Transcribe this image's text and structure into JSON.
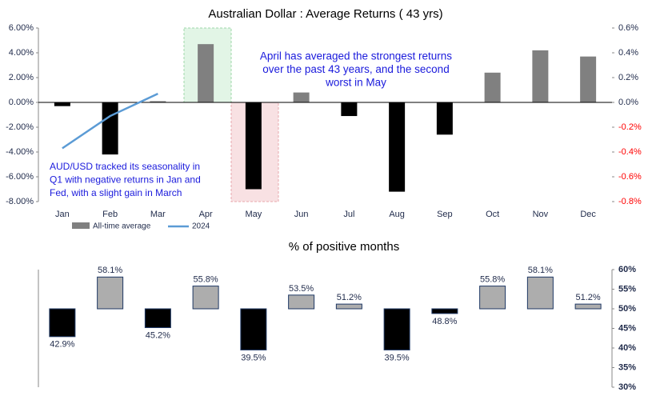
{
  "chart_data": [
    {
      "type": "bar",
      "title": "Australian Dollar : Average Returns ( 43 yrs)",
      "categories": [
        "Jan",
        "Feb",
        "Mar",
        "Apr",
        "May",
        "Jun",
        "Jul",
        "Aug",
        "Sep",
        "Oct",
        "Nov",
        "Dec"
      ],
      "series": [
        {
          "name": "All-time average",
          "color": "#808080",
          "negative_color": "#000000",
          "values": [
            -0.3,
            -4.2,
            0.1,
            4.7,
            -7.0,
            0.8,
            -1.1,
            -7.2,
            -2.6,
            2.4,
            4.2,
            3.7
          ]
        },
        {
          "name": "2024",
          "color": "#5b9bd5",
          "axis": "y2",
          "type": "line",
          "values": [
            -0.37,
            -0.11,
            0.07,
            null,
            null,
            null,
            null,
            null,
            null,
            null,
            null,
            null
          ]
        }
      ],
      "ylim": [
        -8,
        6
      ],
      "yticks": [
        {
          "value": -8,
          "label": "-8.00%"
        },
        {
          "value": -6,
          "label": "-6.00%"
        },
        {
          "value": -4,
          "label": "-4.00%"
        },
        {
          "value": -2,
          "label": "-2.00%"
        },
        {
          "value": 0,
          "label": "0.00%"
        },
        {
          "value": 2,
          "label": "2.00%"
        },
        {
          "value": 4,
          "label": "4.00%"
        },
        {
          "value": 6,
          "label": "6.00%"
        }
      ],
      "y2lim": [
        -0.8,
        0.6
      ],
      "y2ticks": [
        {
          "value": -0.8,
          "label": "-0.8%"
        },
        {
          "value": -0.6,
          "label": "-0.6%"
        },
        {
          "value": -0.4,
          "label": "-0.4%"
        },
        {
          "value": -0.2,
          "label": "-0.2%"
        },
        {
          "value": 0,
          "label": "0.0%"
        },
        {
          "value": 0.2,
          "label": "0.2%"
        },
        {
          "value": 0.4,
          "label": "0.4%"
        },
        {
          "value": 0.6,
          "label": "0.6%"
        }
      ],
      "y2_negative_color": "#ff0000",
      "annotations": [
        [
          "April has averaged the strongest returns",
          "over the past 43 years, and the second",
          "worst in May"
        ],
        [
          "AUD/USD tracked its seasonality in",
          "Q1 with negative returns in Jan and",
          "Fed, with a slight gain in March"
        ]
      ]
    },
    {
      "type": "bar",
      "title": "% of positive months",
      "values": [
        42.9,
        58.1,
        45.2,
        55.8,
        39.5,
        53.5,
        51.2,
        39.5,
        48.8,
        55.8,
        58.1,
        51.2
      ],
      "value_labels": [
        "42.9%",
        "58.1%",
        "45.2%",
        "55.8%",
        "39.5%",
        "53.5%",
        "51.2%",
        "39.5%",
        "48.8%",
        "55.8%",
        "58.1%",
        "51.2%"
      ],
      "baseline": 50,
      "color": "#adadad",
      "negative_color": "#000000",
      "ylim": [
        30,
        60
      ],
      "yticks": [
        {
          "value": 30,
          "label": "30%"
        },
        {
          "value": 35,
          "label": "35%"
        },
        {
          "value": 40,
          "label": "40%"
        },
        {
          "value": 45,
          "label": "45%"
        },
        {
          "value": 50,
          "label": "50%"
        },
        {
          "value": 55,
          "label": "55%"
        },
        {
          "value": 60,
          "label": "60%"
        }
      ]
    }
  ]
}
